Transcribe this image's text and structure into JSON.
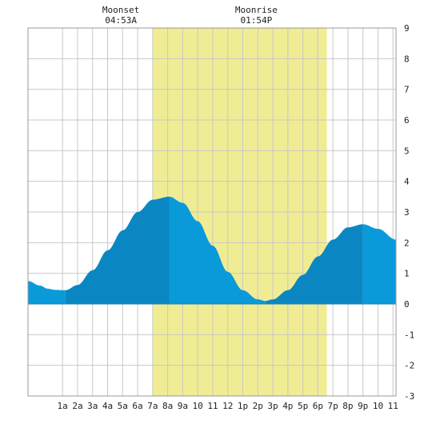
{
  "chart_data": {
    "type": "area",
    "moon_events": [
      {
        "label": "Moonset",
        "time": "04:53A",
        "hour": 4.883
      },
      {
        "label": "Moonrise",
        "time": "01:54P",
        "hour": 13.9
      }
    ],
    "daylight": {
      "start_hour": 7.0,
      "end_hour": 18.6
    },
    "x_tick_labels": [
      "1a",
      "2a",
      "3a",
      "4a",
      "5a",
      "6a",
      "7a",
      "8a",
      "9a",
      "10",
      "11",
      "12",
      "1p",
      "2p",
      "3p",
      "4p",
      "5p",
      "6p",
      "7p",
      "8p",
      "9p",
      "10",
      "11"
    ],
    "y_tick_labels": [
      "-3",
      "-2",
      "-1",
      "0",
      "1",
      "2",
      "3",
      "4",
      "5",
      "6",
      "7",
      "8",
      "9"
    ],
    "xlim": [
      -1.3,
      23.2
    ],
    "ylim": [
      -3,
      9
    ],
    "grid": true,
    "tide_extremes": [
      {
        "kind": "low",
        "hour": 1.2,
        "value": 0.45
      },
      {
        "kind": "high",
        "hour": 8.1,
        "value": 3.5
      },
      {
        "kind": "low",
        "hour": 14.5,
        "value": 0.1
      },
      {
        "kind": "high",
        "hour": 21.0,
        "value": 2.6
      }
    ],
    "series": [
      {
        "x": [
          -1.3,
          -0.5,
          0,
          0.5,
          1.2,
          2,
          3,
          4,
          5,
          6,
          7,
          8.1,
          9,
          10,
          11,
          12,
          13,
          14,
          14.5,
          15,
          16,
          17,
          18,
          19,
          20,
          21,
          22,
          23.2
        ],
        "values": [
          0.75,
          0.6,
          0.5,
          0.46,
          0.45,
          0.62,
          1.1,
          1.75,
          2.4,
          3.0,
          3.4,
          3.5,
          3.3,
          2.7,
          1.9,
          1.05,
          0.45,
          0.15,
          0.1,
          0.15,
          0.45,
          0.95,
          1.55,
          2.1,
          2.5,
          2.6,
          2.45,
          2.1
        ]
      }
    ],
    "colors": {
      "daylight": "#f0ec94",
      "tide_dark": "#0a87c3",
      "tide_light": "#0a9ada",
      "grid": "#c8c8c8",
      "border": "#9a9a9a"
    }
  }
}
